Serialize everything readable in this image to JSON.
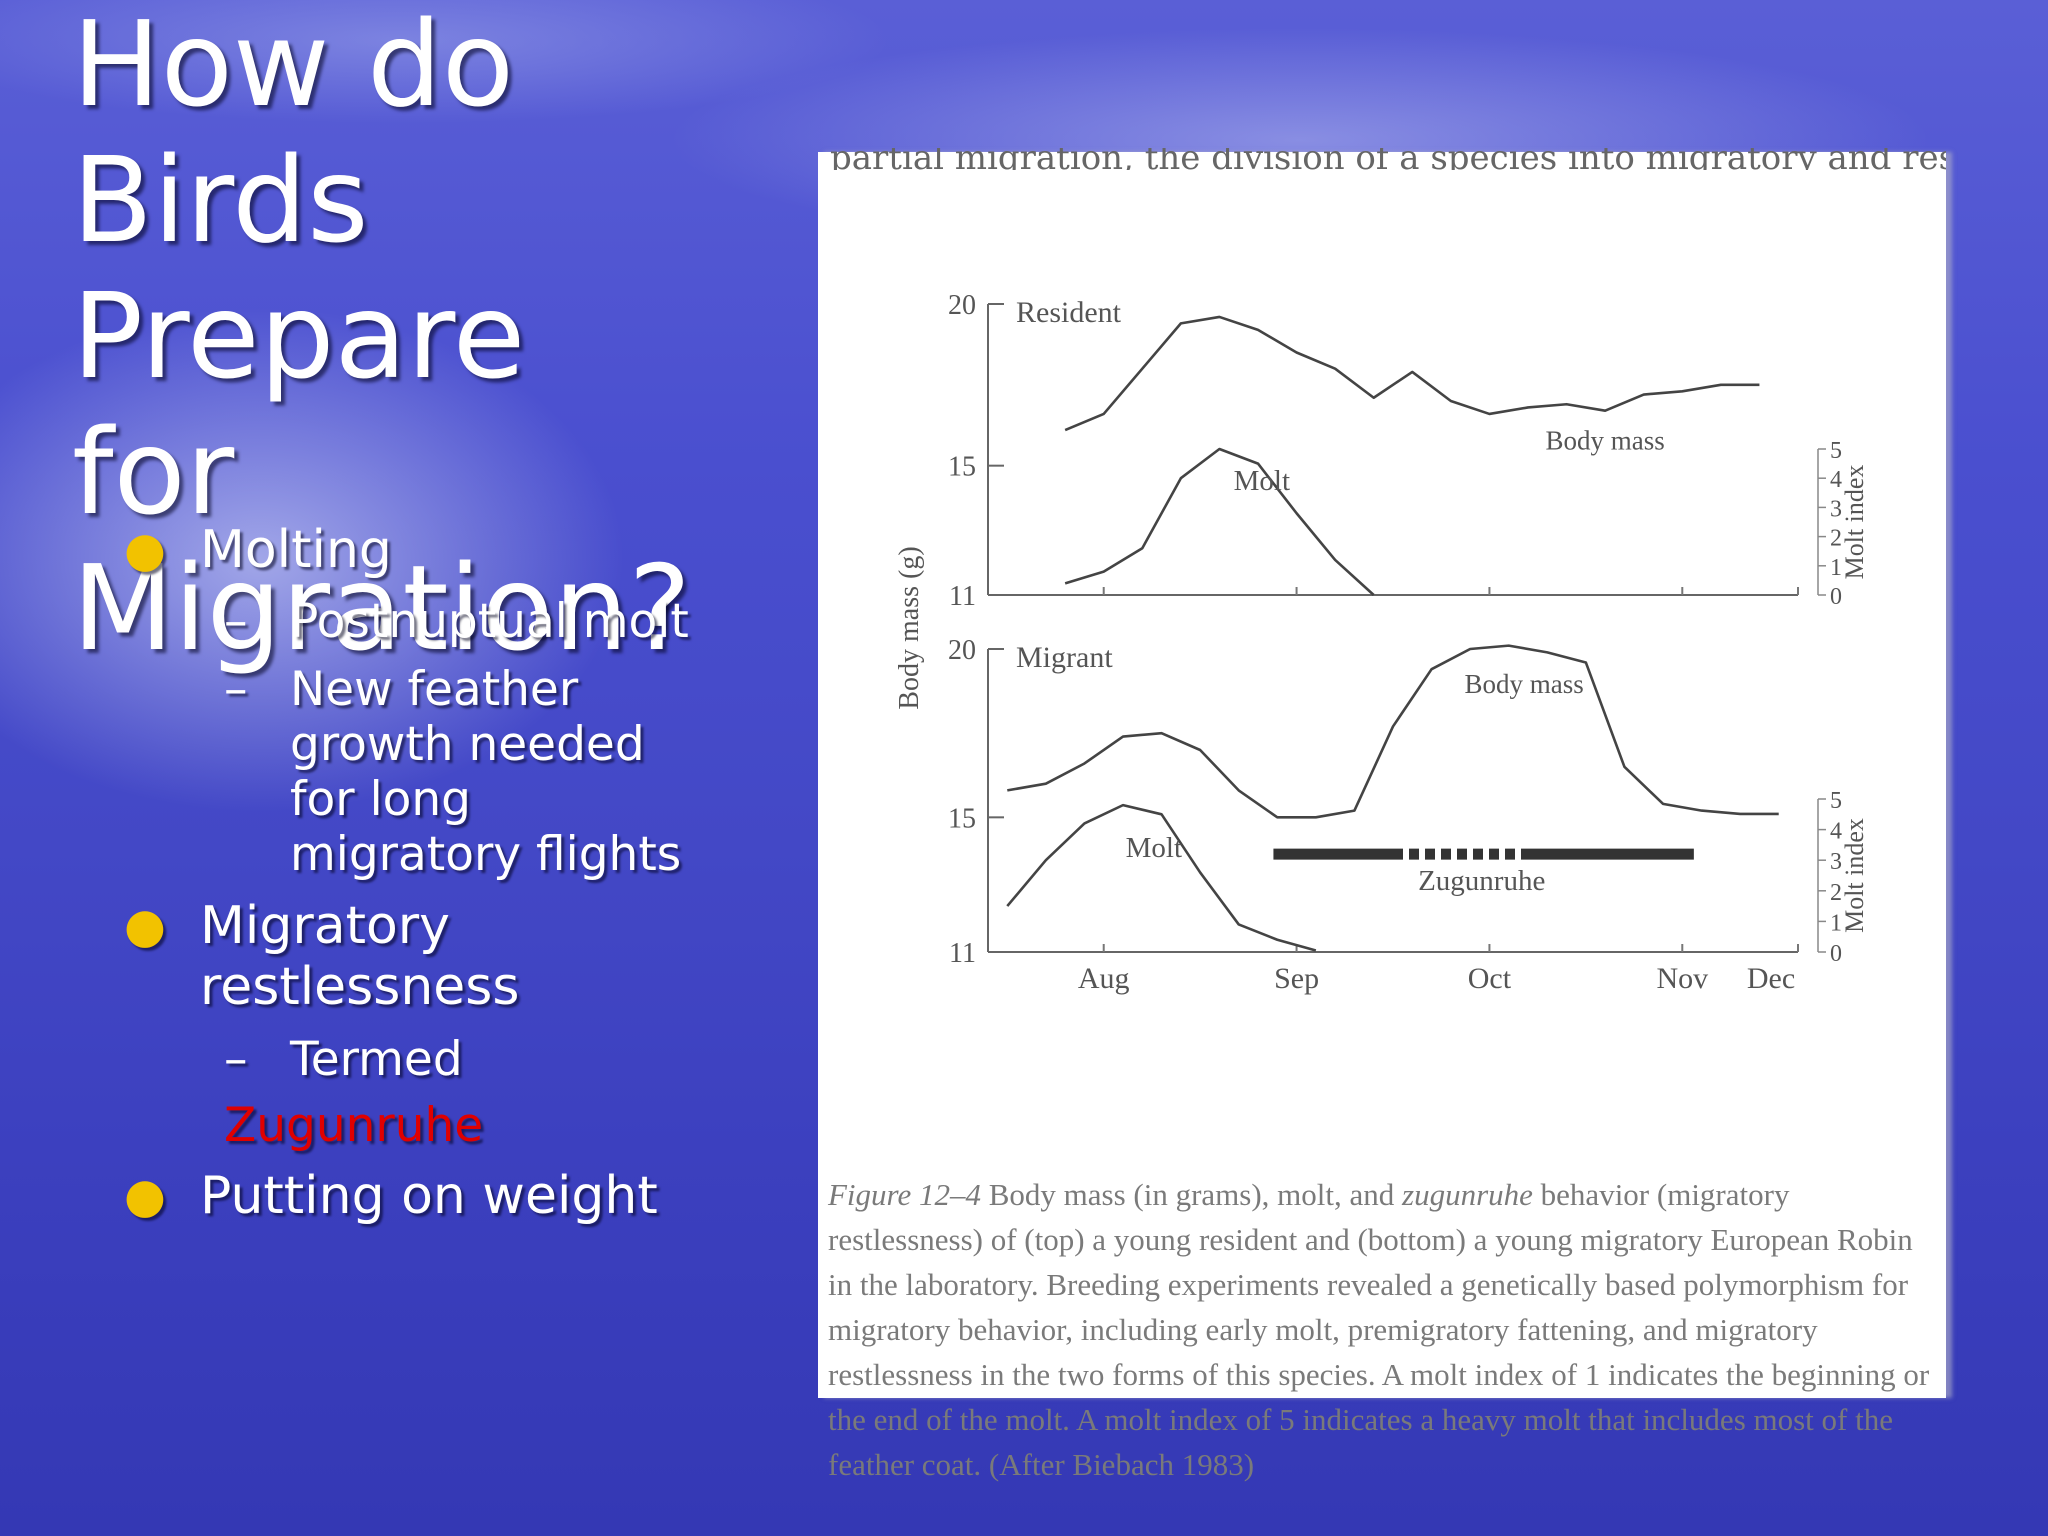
{
  "slide": {
    "title": "How do Birds\nPrepare\n for\nMigration?",
    "bullets": [
      {
        "text": "Molting",
        "subs": [
          "Postnuptual molt",
          "New feather growth needed for long migratory flights"
        ]
      },
      {
        "text": "Migratory restlessness",
        "subs": [
          "Termed",
          "Zugunruhe"
        ]
      },
      {
        "text": "Putting on weight",
        "subs": []
      }
    ],
    "bullet_color": "#f2c200",
    "highlight_color": "#e00000"
  },
  "figure": {
    "top_strip_text": "partial migration, the division of a species into migratory and resident",
    "caption": {
      "label": "Figure 12–4",
      "part1": " Body mass (in grams), molt, and ",
      "italic_word": "zugunruhe",
      "part2": " behavior (migratory restlessness) of (top) a young resident and (bottom) a young migratory European Robin in the laboratory. Breeding experiments revealed a genetically based polymorphism for migratory behavior, including early molt, premigratory fattening, and migratory restlessness in the two forms of this species. A molt index of 1 indicates the beginning or the end of the molt. A molt index of 5 indicates a heavy molt that includes most of the feather coat. (After Biebach 1983)"
    }
  },
  "chart_data": {
    "type": "line",
    "ylabel": "Body mass (g)",
    "y2label": "Molt index",
    "x_ticks": [
      "Aug",
      "Sep",
      "Oct",
      "Nov",
      "Dec"
    ],
    "body_mass_ticks": [
      "20",
      "15",
      "11"
    ],
    "molt_index_ticks": [
      "5",
      "4",
      "3",
      "2",
      "1",
      "0"
    ],
    "ylim_body_mass": [
      11,
      20
    ],
    "ylim_molt_index": [
      0,
      5
    ],
    "x_domain_weeks": [
      0,
      21
    ],
    "panels": [
      {
        "name": "Resident",
        "body_mass_label": "Body mass",
        "molt_label": "Molt",
        "body_mass": {
          "x": [
            2,
            3,
            4,
            5,
            6,
            7,
            8,
            9,
            10,
            11,
            12,
            13,
            14,
            15,
            16,
            17,
            18,
            19,
            20
          ],
          "y": [
            16.1,
            16.6,
            18.0,
            19.4,
            19.6,
            19.2,
            18.5,
            18.0,
            17.1,
            17.9,
            17.0,
            16.6,
            16.8,
            16.9,
            16.7,
            17.2,
            17.3,
            17.5,
            17.5
          ]
        },
        "molt": {
          "x": [
            2,
            3,
            4,
            5,
            6,
            7,
            8,
            9,
            10
          ],
          "y": [
            0.4,
            0.8,
            1.6,
            4.0,
            5.0,
            4.5,
            2.8,
            1.2,
            0.0
          ]
        }
      },
      {
        "name": "Migrant",
        "body_mass_label": "Body mass",
        "molt_label": "Molt",
        "zugunruhe_label": "Zugunruhe",
        "body_mass": {
          "x": [
            0.5,
            1.5,
            2.5,
            3.5,
            4.5,
            5.5,
            6.5,
            7.5,
            8.5,
            9.5,
            10.5,
            11.5,
            12.5,
            13.5,
            14.5,
            15.5,
            16.5,
            17.5,
            18.5,
            19.5,
            20.5
          ],
          "y": [
            15.8,
            16.0,
            16.6,
            17.4,
            17.5,
            17.0,
            15.8,
            15.0,
            15.0,
            15.2,
            17.7,
            19.4,
            20.0,
            20.1,
            19.9,
            19.6,
            16.5,
            15.4,
            15.2,
            15.1,
            15.1
          ]
        },
        "molt": {
          "x": [
            0.5,
            1.5,
            2.5,
            3.5,
            4.5,
            5.5,
            6.5,
            7.5,
            8.5
          ],
          "y": [
            1.5,
            3.0,
            4.2,
            4.8,
            4.5,
            2.6,
            0.9,
            0.4,
            0.05
          ]
        },
        "zugunruhe": {
          "segments": [
            {
              "start": 7.4,
              "end": 10.5,
              "style": "solid"
            },
            {
              "start": 10.5,
              "end": 14.0,
              "style": "dashed"
            },
            {
              "start": 14.0,
              "end": 18.3,
              "style": "solid"
            }
          ]
        }
      }
    ]
  }
}
